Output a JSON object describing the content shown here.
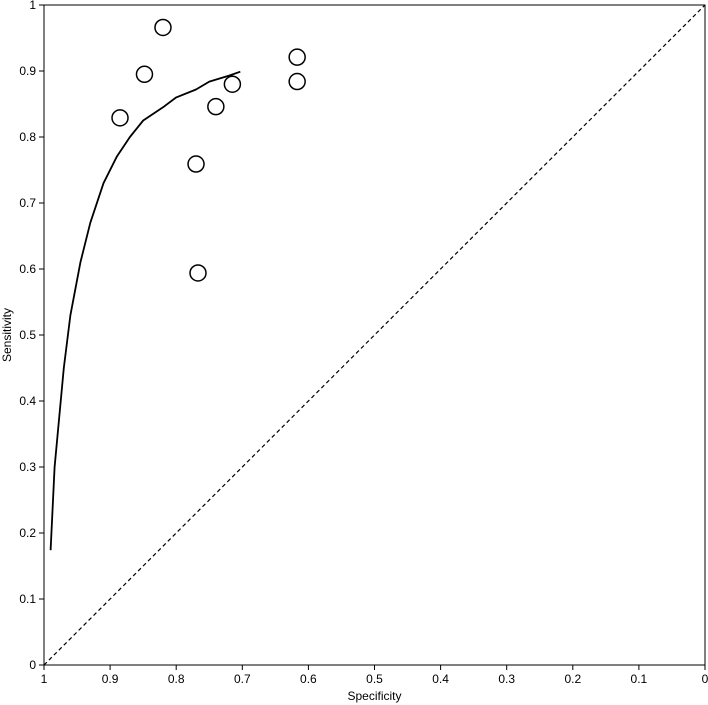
{
  "chart_data": {
    "type": "scatter",
    "title": "",
    "xlabel": "Specificity",
    "ylabel": "Sensitivity",
    "xlim": [
      1,
      0
    ],
    "ylim": [
      0,
      1
    ],
    "x_reversed": true,
    "grid": false,
    "x_ticks": [
      1,
      0.9,
      0.8,
      0.7,
      0.6,
      0.5,
      0.4,
      0.3,
      0.2,
      0.1,
      0
    ],
    "y_ticks": [
      0,
      0.1,
      0.2,
      0.3,
      0.4,
      0.5,
      0.6,
      0.7,
      0.8,
      0.9,
      1
    ],
    "x_tick_labels": [
      "1",
      "0.9",
      "0.8",
      "0.7",
      "0.6",
      "0.5",
      "0.4",
      "0.3",
      "0.2",
      "0.1",
      "0"
    ],
    "y_tick_labels": [
      "0",
      "0.1",
      "0.2",
      "0.3",
      "0.4",
      "0.5",
      "0.6",
      "0.7",
      "0.8",
      "0.9",
      "1"
    ],
    "series": [
      {
        "kind": "points",
        "marker": "open-circle",
        "points": [
          {
            "x": 0.82,
            "y": 0.966
          },
          {
            "x": 0.848,
            "y": 0.895
          },
          {
            "x": 0.885,
            "y": 0.829
          },
          {
            "x": 0.617,
            "y": 0.921
          },
          {
            "x": 0.617,
            "y": 0.884
          },
          {
            "x": 0.715,
            "y": 0.88
          },
          {
            "x": 0.74,
            "y": 0.846
          },
          {
            "x": 0.77,
            "y": 0.759
          },
          {
            "x": 0.767,
            "y": 0.594
          }
        ]
      },
      {
        "kind": "curve",
        "style": "solid",
        "points": [
          {
            "x": 0.99,
            "y": 0.174
          },
          {
            "x": 0.984,
            "y": 0.3
          },
          {
            "x": 0.97,
            "y": 0.45
          },
          {
            "x": 0.96,
            "y": 0.53
          },
          {
            "x": 0.945,
            "y": 0.61
          },
          {
            "x": 0.93,
            "y": 0.67
          },
          {
            "x": 0.91,
            "y": 0.73
          },
          {
            "x": 0.89,
            "y": 0.77
          },
          {
            "x": 0.87,
            "y": 0.8
          },
          {
            "x": 0.85,
            "y": 0.825
          },
          {
            "x": 0.82,
            "y": 0.845
          },
          {
            "x": 0.8,
            "y": 0.86
          },
          {
            "x": 0.77,
            "y": 0.872
          },
          {
            "x": 0.75,
            "y": 0.884
          },
          {
            "x": 0.72,
            "y": 0.893
          },
          {
            "x": 0.703,
            "y": 0.899
          }
        ]
      },
      {
        "kind": "reference-line",
        "style": "dashed",
        "points": [
          {
            "x": 1,
            "y": 0
          },
          {
            "x": 0,
            "y": 1
          }
        ]
      }
    ]
  }
}
